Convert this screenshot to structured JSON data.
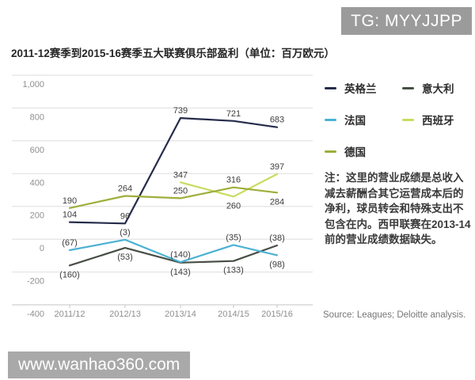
{
  "badges": {
    "top_right": "TG: MYYJJPP",
    "bottom_left": "www.wanhao360.com"
  },
  "title": "2011-12赛季到2015-16赛季五大联赛俱乐部盈利（单位：百万欧元）",
  "note": "注：这里的营业成绩是总收入减去薪酬合其它运营成本后的净利，球员转会和特殊支出不包含在内。西甲联赛在2013-14前的营业成绩数据缺失。",
  "source": "Source: Leagues; Deloitte analysis.",
  "colors": {
    "grid": "#dedede",
    "axis": "#c4c4c4",
    "tick_label": "#8f8f8f",
    "point_label": "#3d3d3d"
  },
  "chart_data": {
    "type": "line",
    "title": "2011-12赛季到2015-16赛季五大联赛俱乐部盈利（单位：百万欧元）",
    "categories": [
      "2011/12",
      "2012/13",
      "2013/14",
      "2014/15",
      "2015/16"
    ],
    "ylim": [
      -400,
      1000
    ],
    "yticks": [
      1000,
      800,
      600,
      400,
      200,
      0,
      -200,
      -400
    ],
    "ytick_labels": [
      "1,000",
      "800",
      "600",
      "400",
      "200",
      "0",
      "-200",
      "-400"
    ],
    "grid": true,
    "legend_position": "right",
    "series": [
      {
        "name": "英格兰",
        "color": "#252b4a",
        "values": [
          104,
          96,
          739,
          721,
          683
        ],
        "labels": [
          "104",
          "96",
          "739",
          "721",
          "683"
        ],
        "label_pos": [
          "above",
          "above",
          "above",
          "above",
          "above"
        ]
      },
      {
        "name": "意大利",
        "color": "#474f45",
        "values": [
          -160,
          -53,
          -143,
          -133,
          -38
        ],
        "labels": [
          "(160)",
          "(53)",
          "(143)",
          "(133)",
          "(38)"
        ],
        "label_pos": [
          "below",
          "below",
          "below",
          "below",
          "above"
        ]
      },
      {
        "name": "法国",
        "color": "#4cb2d4",
        "values": [
          -67,
          -3,
          -140,
          -35,
          -98
        ],
        "labels": [
          "(67)",
          "(3)",
          "(140)",
          "(35)",
          "(98)"
        ],
        "label_pos": [
          "above",
          "above",
          "above",
          "above",
          "below"
        ]
      },
      {
        "name": "西班牙",
        "color": "#c8dc5f",
        "values": [
          null,
          null,
          347,
          260,
          397
        ],
        "labels": [
          null,
          null,
          "347",
          "260",
          "397"
        ],
        "label_pos": [
          null,
          null,
          "above",
          "below",
          "above"
        ]
      },
      {
        "name": "德国",
        "color": "#9fae3b",
        "values": [
          190,
          264,
          250,
          316,
          284
        ],
        "labels": [
          "190",
          "264",
          "250",
          "316",
          "284"
        ],
        "label_pos": [
          "above",
          "above",
          "above",
          "above",
          "below"
        ]
      }
    ]
  }
}
